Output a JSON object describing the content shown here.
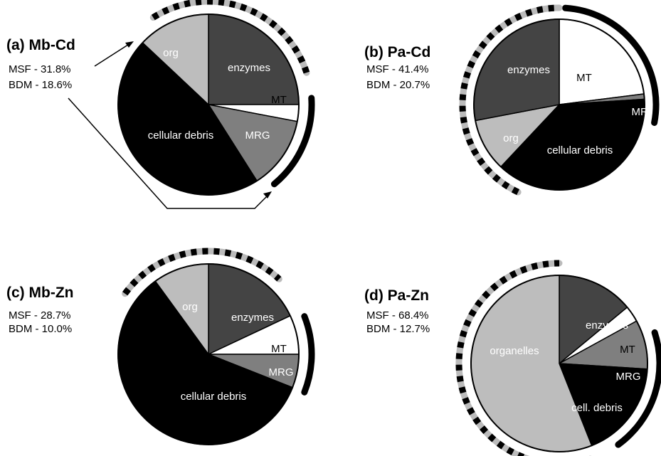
{
  "colors": {
    "enzymes": "#444444",
    "MT": "#ffffff",
    "MRG": "#7f7f7f",
    "cellular_debris": "#000000",
    "organelles": "#bdbdbd",
    "outline": "#000000"
  },
  "chart_data": [
    {
      "type": "pie",
      "title": "(a) Mb-Cd",
      "MSF": "MSF - 31.8%",
      "BDM": "BDM - 18.6%",
      "slice_order": "clockwise from 12 o'clock",
      "slices": [
        {
          "label": "enzymes",
          "value": 25,
          "color": "#444444",
          "text_color": "#ffffff"
        },
        {
          "label": "MT",
          "value": 3,
          "color": "#ffffff",
          "text_color": "#000000"
        },
        {
          "label": "MRG",
          "value": 13,
          "color": "#7f7f7f",
          "text_color": "#ffffff"
        },
        {
          "label": "cellular debris",
          "value": 46,
          "color": "#000000",
          "text_color": "#ffffff"
        },
        {
          "label": "org",
          "value": 13,
          "color": "#bdbdbd",
          "text_color": "#ffffff"
        }
      ],
      "outer_arcs": [
        {
          "style": "dashed",
          "from_pct": 91,
          "to_pct": 20
        },
        {
          "style": "solid",
          "from_pct": 24,
          "to_pct": 39
        }
      ]
    },
    {
      "type": "pie",
      "title": "(b) Pa-Cd",
      "MSF": "MSF - 41.4%",
      "BDM": "BDM - 20.7%",
      "slice_order": "clockwise from 12 o'clock",
      "slices": [
        {
          "label": "MT",
          "value": 23,
          "color": "#ffffff",
          "text_color": "#000000"
        },
        {
          "label": "MRG",
          "value": 1,
          "color": "#7f7f7f",
          "text_color": "#ffffff"
        },
        {
          "label": "cellular debris",
          "value": 38,
          "color": "#000000",
          "text_color": "#ffffff"
        },
        {
          "label": "org",
          "value": 10,
          "color": "#bdbdbd",
          "text_color": "#ffffff"
        },
        {
          "label": "enzymes",
          "value": 28,
          "color": "#444444",
          "text_color": "#ffffff"
        }
      ],
      "outer_arcs": [
        {
          "style": "solid",
          "from_pct": 1,
          "to_pct": 28
        },
        {
          "style": "dashed",
          "from_pct": 57,
          "to_pct": 100
        }
      ]
    },
    {
      "type": "pie",
      "title": "(c) Mb-Zn",
      "MSF": "MSF - 28.7%",
      "BDM": "BDM - 10.0%",
      "slice_order": "clockwise from 12 o'clock",
      "slices": [
        {
          "label": "enzymes",
          "value": 18,
          "color": "#444444",
          "text_color": "#ffffff"
        },
        {
          "label": "MT",
          "value": 7,
          "color": "#ffffff",
          "text_color": "#000000"
        },
        {
          "label": "MRG",
          "value": 6,
          "color": "#7f7f7f",
          "text_color": "#ffffff"
        },
        {
          "label": "cellular debris",
          "value": 59,
          "color": "#000000",
          "text_color": "#ffffff"
        },
        {
          "label": "org",
          "value": 10,
          "color": "#bdbdbd",
          "text_color": "#ffffff"
        }
      ],
      "outer_arcs": [
        {
          "style": "dashed",
          "from_pct": 85,
          "to_pct": 12
        },
        {
          "style": "solid",
          "from_pct": 19,
          "to_pct": 31
        }
      ]
    },
    {
      "type": "pie",
      "title": "(d) Pa-Zn",
      "MSF": "MSF - 68.4%",
      "BDM": "BDM - 12.7%",
      "slice_order": "clockwise from 12 o'clock",
      "slices": [
        {
          "label": "enzymes",
          "value": 14,
          "color": "#444444",
          "text_color": "#ffffff"
        },
        {
          "label": "MT",
          "value": 3,
          "color": "#ffffff",
          "text_color": "#000000"
        },
        {
          "label": "MRG",
          "value": 9,
          "color": "#7f7f7f",
          "text_color": "#ffffff"
        },
        {
          "label": "cell. debris",
          "value": 18,
          "color": "#000000",
          "text_color": "#ffffff"
        },
        {
          "label": "organelles",
          "value": 56,
          "color": "#bdbdbd",
          "text_color": "#ffffff"
        }
      ],
      "outer_arcs": [
        {
          "style": "solid",
          "from_pct": 20,
          "to_pct": 40
        },
        {
          "style": "dashed",
          "from_pct": 45,
          "to_pct": 100
        }
      ]
    }
  ]
}
